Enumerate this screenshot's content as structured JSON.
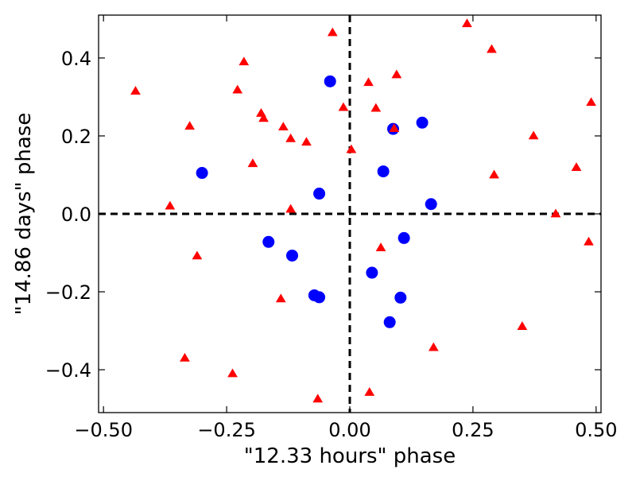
{
  "chart_data": {
    "type": "scatter",
    "title": "",
    "xlabel": "\"12.33 hours\" phase",
    "ylabel": "\"14.86 days\" phase",
    "xlim": [
      -0.51,
      0.51
    ],
    "ylim": [
      -0.51,
      0.51
    ],
    "xticks": [
      -0.5,
      -0.25,
      0.0,
      0.25,
      0.5
    ],
    "xtick_labels": [
      "−0.50",
      "−0.25",
      "0.00",
      "0.25",
      "0.50"
    ],
    "yticks": [
      -0.4,
      -0.2,
      0.0,
      0.2,
      0.4
    ],
    "ytick_labels": [
      "−0.4",
      "−0.2",
      "0.0",
      "0.2",
      "0.4"
    ],
    "grid": false,
    "legend": "none",
    "reference_lines": [
      {
        "orientation": "vertical",
        "x": 0.0,
        "style": "dashed",
        "color": "#000000"
      },
      {
        "orientation": "horizontal",
        "y": 0.0,
        "style": "dashed",
        "color": "#000000"
      }
    ],
    "series": [
      {
        "marker": "circle",
        "color": "#0000ff",
        "points": [
          [
            -0.04,
            0.34
          ],
          [
            0.088,
            0.218
          ],
          [
            0.147,
            0.234
          ],
          [
            -0.3,
            0.105
          ],
          [
            0.068,
            0.109
          ],
          [
            -0.062,
            0.052
          ],
          [
            0.165,
            0.025
          ],
          [
            -0.165,
            -0.072
          ],
          [
            0.11,
            -0.062
          ],
          [
            -0.117,
            -0.107
          ],
          [
            0.045,
            -0.151
          ],
          [
            -0.072,
            -0.209
          ],
          [
            -0.062,
            -0.214
          ],
          [
            0.103,
            -0.215
          ],
          [
            0.081,
            -0.278
          ]
        ]
      },
      {
        "marker": "triangle",
        "color": "#ff0000",
        "points": [
          [
            -0.435,
            0.315
          ],
          [
            -0.215,
            0.39
          ],
          [
            -0.228,
            0.318
          ],
          [
            -0.035,
            0.465
          ],
          [
            0.238,
            0.488
          ],
          [
            0.288,
            0.422
          ],
          [
            0.095,
            0.357
          ],
          [
            0.038,
            0.337
          ],
          [
            0.053,
            0.271
          ],
          [
            -0.013,
            0.273
          ],
          [
            0.49,
            0.286
          ],
          [
            -0.18,
            0.258
          ],
          [
            -0.175,
            0.245
          ],
          [
            -0.325,
            0.225
          ],
          [
            -0.135,
            0.223
          ],
          [
            -0.12,
            0.193
          ],
          [
            -0.088,
            0.184
          ],
          [
            0.09,
            0.219
          ],
          [
            0.373,
            0.2
          ],
          [
            0.003,
            0.165
          ],
          [
            -0.197,
            0.129
          ],
          [
            0.293,
            0.1
          ],
          [
            0.46,
            0.119
          ],
          [
            -0.365,
            0.02
          ],
          [
            -0.12,
            0.012
          ],
          [
            0.418,
            0.0
          ],
          [
            -0.31,
            -0.108
          ],
          [
            0.063,
            -0.087
          ],
          [
            0.485,
            -0.072
          ],
          [
            -0.14,
            -0.218
          ],
          [
            0.35,
            -0.289
          ],
          [
            0.17,
            -0.343
          ],
          [
            -0.335,
            -0.37
          ],
          [
            -0.238,
            -0.41
          ],
          [
            0.04,
            -0.458
          ],
          [
            -0.065,
            -0.475
          ]
        ]
      }
    ]
  }
}
